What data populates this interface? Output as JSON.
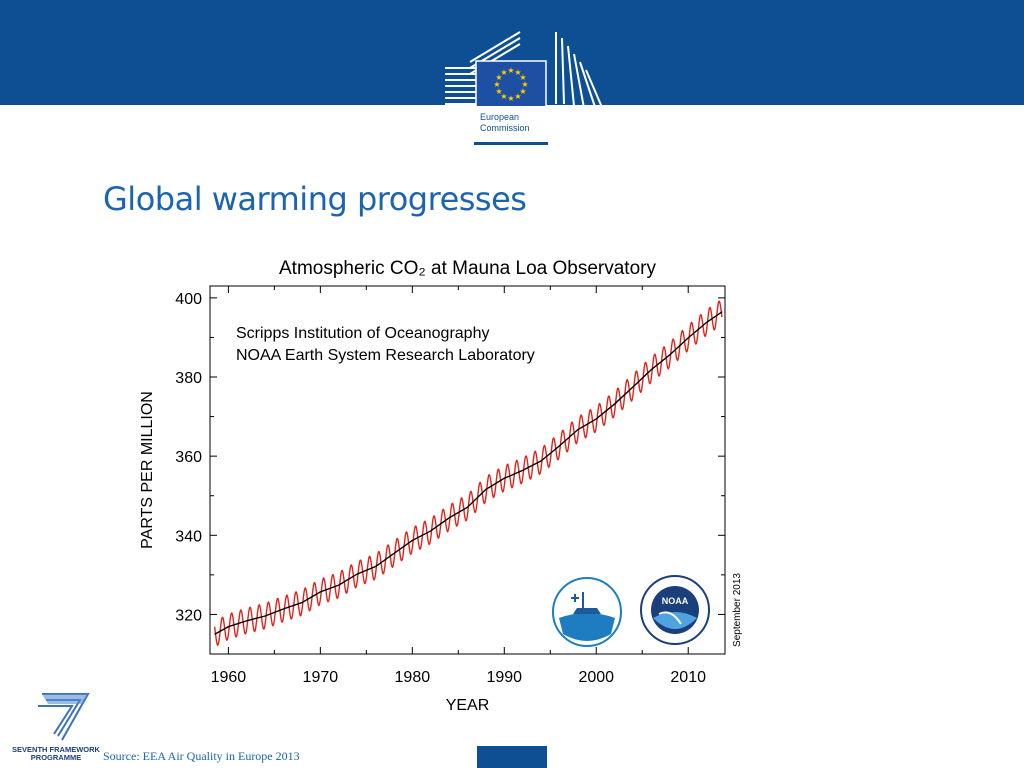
{
  "header": {
    "background_color": "#0e4f93",
    "logo_name": "european-commission-logo",
    "logo_text_line1": "European",
    "logo_text_line2": "Commission"
  },
  "slide": {
    "title": "Global warming progresses",
    "title_color": "#1a64b0"
  },
  "footer": {
    "programme_logo_line1": "SEVENTH FRAMEWORK",
    "programme_logo_line2": "PROGRAMME",
    "source": "Source: EEA Air Quality in Europe 2013"
  },
  "chart_data": {
    "type": "line",
    "title": "Atmospheric CO₂ at Mauna Loa Observatory",
    "subtitle_line1": "Scripps Institution of Oceanography",
    "subtitle_line2": "NOAA Earth System Research Laboratory",
    "xlabel": "YEAR",
    "ylabel": "PARTS PER MILLION",
    "side_note": "September 2013",
    "xlim": [
      1958,
      2014
    ],
    "ylim": [
      310,
      403
    ],
    "x_ticks": [
      1960,
      1970,
      1980,
      1990,
      2000,
      2010
    ],
    "y_ticks": [
      320,
      340,
      360,
      380,
      400
    ],
    "grid": false,
    "series": [
      {
        "role": "trend",
        "color": "#000000",
        "x": [
          1958.5,
          1960,
          1962,
          1964,
          1966,
          1968,
          1970,
          1972,
          1974,
          1976,
          1978,
          1980,
          1982,
          1984,
          1986,
          1988,
          1990,
          1992,
          1994,
          1996,
          1998,
          2000,
          2002,
          2004,
          2006,
          2008,
          2010,
          2012,
          2013.7
        ],
        "y": [
          315.0,
          316.9,
          318.4,
          319.6,
          321.4,
          323.0,
          325.7,
          327.4,
          330.2,
          332.1,
          335.4,
          338.7,
          341.1,
          344.4,
          347.1,
          351.6,
          354.4,
          356.4,
          358.8,
          362.6,
          366.7,
          369.4,
          373.2,
          377.5,
          381.9,
          385.6,
          389.9,
          393.8,
          396.5
        ]
      },
      {
        "role": "monthly-mean-seasonal",
        "color": "#e2231a",
        "seasonal_amplitude_ppm": 3.2
      }
    ],
    "institution_logos": [
      "scripps-institution-logo",
      "noaa-logo"
    ]
  }
}
